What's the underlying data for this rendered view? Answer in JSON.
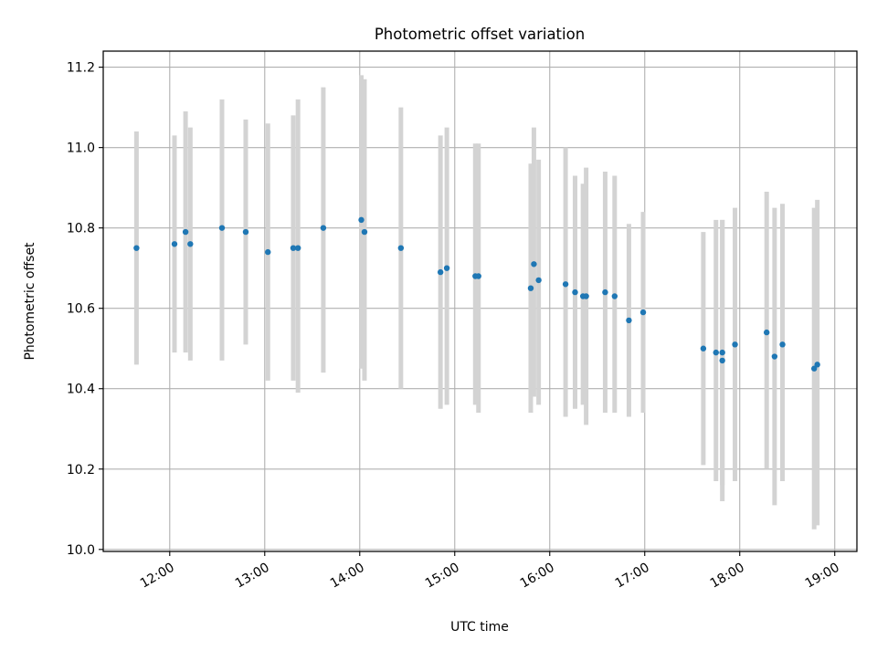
{
  "chart_data": {
    "type": "scatter",
    "title": "Photometric offset variation",
    "xlabel": "UTC time",
    "ylabel": "Photometric offset",
    "x_unit": "UTC",
    "xlim": [
      "11:18",
      "19:14"
    ],
    "ylim": [
      9.995,
      11.24
    ],
    "x_ticks": [
      "12:00",
      "13:00",
      "14:00",
      "15:00",
      "16:00",
      "17:00",
      "18:00",
      "19:00"
    ],
    "y_ticks": [
      "10.0",
      "10.2",
      "10.4",
      "10.6",
      "10.8",
      "11.0",
      "11.2"
    ],
    "grid": true,
    "legend": "none",
    "colors": {
      "point": "#1f77b4",
      "errorbar": "#d3d3d3",
      "grid": "#b0b0b0"
    },
    "series": [
      {
        "points": [
          {
            "x": "11:39",
            "y": 10.75,
            "low": 10.46,
            "high": 11.04
          },
          {
            "x": "12:03",
            "y": 10.76,
            "low": 10.49,
            "high": 11.03
          },
          {
            "x": "12:10",
            "y": 10.79,
            "low": 10.49,
            "high": 11.09
          },
          {
            "x": "12:13",
            "y": 10.76,
            "low": 10.47,
            "high": 11.05
          },
          {
            "x": "12:33",
            "y": 10.8,
            "low": 10.47,
            "high": 11.12
          },
          {
            "x": "12:48",
            "y": 10.79,
            "low": 10.51,
            "high": 11.07
          },
          {
            "x": "13:02",
            "y": 10.74,
            "low": 10.42,
            "high": 11.06
          },
          {
            "x": "13:18",
            "y": 10.75,
            "low": 10.42,
            "high": 11.08
          },
          {
            "x": "13:21",
            "y": 10.75,
            "low": 10.39,
            "high": 11.12
          },
          {
            "x": "13:37",
            "y": 10.8,
            "low": 10.44,
            "high": 11.15
          },
          {
            "x": "14:01",
            "y": 10.82,
            "low": 10.45,
            "high": 11.18
          },
          {
            "x": "14:03",
            "y": 10.79,
            "low": 10.42,
            "high": 11.17
          },
          {
            "x": "14:26",
            "y": 10.75,
            "low": 10.4,
            "high": 11.1
          },
          {
            "x": "14:51",
            "y": 10.69,
            "low": 10.35,
            "high": 11.03
          },
          {
            "x": "14:55",
            "y": 10.7,
            "low": 10.36,
            "high": 11.05
          },
          {
            "x": "15:13",
            "y": 10.68,
            "low": 10.36,
            "high": 11.01
          },
          {
            "x": "15:15",
            "y": 10.68,
            "low": 10.34,
            "high": 11.01
          },
          {
            "x": "15:48",
            "y": 10.65,
            "low": 10.34,
            "high": 10.96
          },
          {
            "x": "15:50",
            "y": 10.71,
            "low": 10.38,
            "high": 11.05
          },
          {
            "x": "15:53",
            "y": 10.67,
            "low": 10.36,
            "high": 10.97
          },
          {
            "x": "16:10",
            "y": 10.66,
            "low": 10.33,
            "high": 11.0
          },
          {
            "x": "16:16",
            "y": 10.64,
            "low": 10.35,
            "high": 10.93
          },
          {
            "x": "16:21",
            "y": 10.63,
            "low": 10.36,
            "high": 10.91
          },
          {
            "x": "16:23",
            "y": 10.63,
            "low": 10.31,
            "high": 10.95
          },
          {
            "x": "16:35",
            "y": 10.64,
            "low": 10.34,
            "high": 10.94
          },
          {
            "x": "16:41",
            "y": 10.63,
            "low": 10.34,
            "high": 10.93
          },
          {
            "x": "16:50",
            "y": 10.57,
            "low": 10.33,
            "high": 10.81
          },
          {
            "x": "16:59",
            "y": 10.59,
            "low": 10.34,
            "high": 10.84
          },
          {
            "x": "17:37",
            "y": 10.5,
            "low": 10.21,
            "high": 10.79
          },
          {
            "x": "17:45",
            "y": 10.49,
            "low": 10.17,
            "high": 10.82
          },
          {
            "x": "17:49",
            "y": 10.47,
            "low": 10.12,
            "high": 10.82
          },
          {
            "x": "17:49",
            "y": 10.49,
            "low": 10.16,
            "high": 10.82
          },
          {
            "x": "17:57",
            "y": 10.51,
            "low": 10.17,
            "high": 10.85
          },
          {
            "x": "18:17",
            "y": 10.54,
            "low": 10.2,
            "high": 10.89
          },
          {
            "x": "18:22",
            "y": 10.48,
            "low": 10.11,
            "high": 10.85
          },
          {
            "x": "18:27",
            "y": 10.51,
            "low": 10.17,
            "high": 10.86
          },
          {
            "x": "18:47",
            "y": 10.45,
            "low": 10.05,
            "high": 10.85
          },
          {
            "x": "18:49",
            "y": 10.46,
            "low": 10.06,
            "high": 10.87
          }
        ]
      }
    ]
  }
}
